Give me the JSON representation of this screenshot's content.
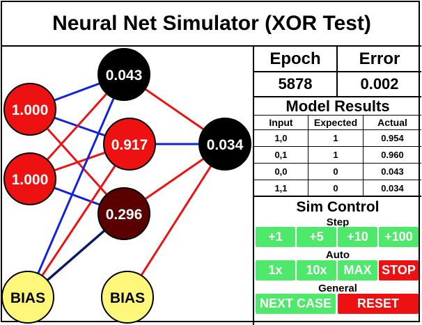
{
  "title": "Neural Net Simulator (XOR Test)",
  "stats": {
    "epoch_label": "Epoch",
    "error_label": "Error",
    "epoch_value": "5878",
    "error_value": "0.002"
  },
  "model_results": {
    "title": "Model Results",
    "columns": [
      "Input",
      "Expected",
      "Actual"
    ],
    "rows": [
      [
        "1,0",
        "1",
        "0.954"
      ],
      [
        "0,1",
        "1",
        "0.960"
      ],
      [
        "0,0",
        "0",
        "0.043"
      ],
      [
        "1,1",
        "0",
        "0.034"
      ]
    ]
  },
  "sim_control": {
    "title": "Sim Control",
    "step_label": "Step",
    "step_buttons": [
      "+1",
      "+5",
      "+10",
      "+100"
    ],
    "auto_label": "Auto",
    "auto_buttons": [
      "1x",
      "10x",
      "MAX",
      "STOP"
    ],
    "general_label": "General",
    "next_case_label": "NEXT CASE",
    "reset_label": "RESET"
  },
  "network": {
    "inputs": [
      "1.000",
      "1.000"
    ],
    "hidden": [
      "0.043",
      "0.917",
      "0.296"
    ],
    "output": "0.034",
    "bias_labels": [
      "BIAS",
      "BIAS"
    ]
  },
  "colors": {
    "positive_weight": "#ee1111",
    "negative_weight": "#1122dd",
    "dark_weight": "#0b1a66",
    "bias_fill": "#fff77a",
    "active_fill": "#ee1111",
    "mid_fill": "#5a0000",
    "inactive_fill": "#000000",
    "button_green": "#4ee86a",
    "button_red": "#ee1111"
  }
}
